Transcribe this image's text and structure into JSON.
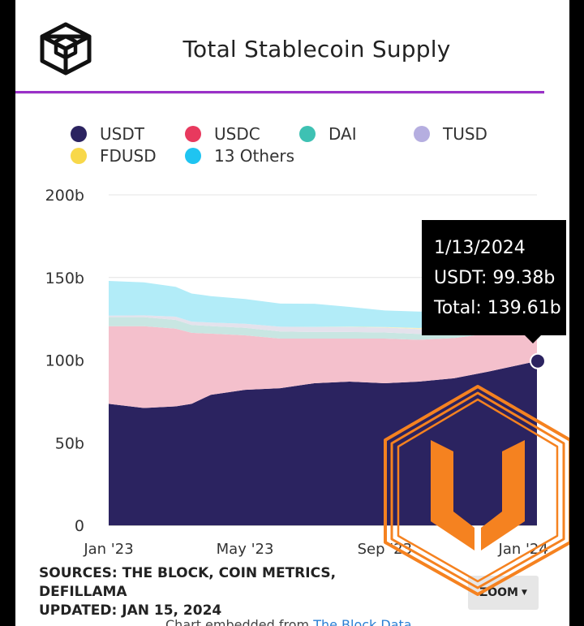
{
  "header": {
    "title": "Total Stablecoin Supply",
    "logo_icon": "the-block-cube-logo-icon"
  },
  "legend": [
    {
      "label": "USDT",
      "color": "#2b2360"
    },
    {
      "label": "USDC",
      "color": "#e8395e"
    },
    {
      "label": "DAI",
      "color": "#3ec1b3"
    },
    {
      "label": "TUSD",
      "color": "#b5aee0"
    },
    {
      "label": "FDUSD",
      "color": "#f8d84a"
    },
    {
      "label": "13 Others",
      "color": "#1fc4f1"
    }
  ],
  "chart_data": {
    "type": "area",
    "stacked": true,
    "title": "Total Stablecoin Supply",
    "xlabel": "",
    "ylabel": "",
    "ylim": [
      0,
      200
    ],
    "y_unit": "b",
    "y_ticks": [
      "0",
      "50b",
      "100b",
      "150b",
      "200b"
    ],
    "x_ticks": [
      "Jan '23",
      "May '23",
      "Sep '23",
      "Jan '24"
    ],
    "grid": true,
    "x": [
      "2023-01-01",
      "2023-02-01",
      "2023-03-01",
      "2023-03-15",
      "2023-04-01",
      "2023-05-01",
      "2023-06-01",
      "2023-07-01",
      "2023-08-01",
      "2023-09-01",
      "2023-10-01",
      "2023-11-01",
      "2023-12-01",
      "2024-01-13"
    ],
    "series": [
      {
        "name": "USDT",
        "color": "#2b2360",
        "values": [
          73.5,
          71,
          72,
          73.5,
          79,
          82,
          83,
          86,
          87,
          86,
          87,
          89,
          93,
          99.38
        ]
      },
      {
        "name": "USDC",
        "color": "#f4c0cc",
        "values": [
          47,
          49.5,
          47,
          43,
          37,
          33,
          30,
          27,
          26,
          27,
          25.3,
          24.3,
          23,
          25
        ]
      },
      {
        "name": "DAI",
        "color": "#c8e6e2",
        "values": [
          5.5,
          5.5,
          5.3,
          4.8,
          4.6,
          4.5,
          4.3,
          4,
          4,
          3.7,
          3.5,
          3.4,
          3.3,
          3.3
        ]
      },
      {
        "name": "TUSD",
        "color": "#e4e2ec",
        "values": [
          0.9,
          1.1,
          2,
          2,
          2.1,
          2.5,
          2.9,
          3,
          3,
          3,
          3,
          2.8,
          2.5,
          1.5
        ]
      },
      {
        "name": "FDUSD",
        "color": "#f7eec0",
        "values": [
          0,
          0,
          0,
          0,
          0,
          0,
          0,
          0.1,
          0.2,
          0.3,
          0.6,
          1,
          1.5,
          1.9
        ]
      },
      {
        "name": "13 Others",
        "color": "#b2ecf8",
        "values": [
          21,
          20,
          18,
          17,
          16,
          15,
          14,
          14,
          12,
          10,
          10,
          9,
          9,
          8.53
        ]
      }
    ],
    "highlight": {
      "date": "1/13/2024",
      "series": "USDT",
      "value": 99.38,
      "total": 139.61
    }
  },
  "tooltip": {
    "date": "1/13/2024",
    "usdt_line": "USDT: 99.38b",
    "total_line": "Total: 139.61b"
  },
  "footer": {
    "sources_line1": "SOURCES: THE BLOCK, COIN METRICS,",
    "sources_line2": "DEFILLAMA",
    "updated": "UPDATED: JAN 15, 2024",
    "zoom_label": "ZOOM",
    "embed_text": "Chart embedded from ",
    "embed_link": "The Block Data"
  },
  "watermark": {
    "icon": "orange-hexagon-u-watermark-icon",
    "color": "#f58220"
  }
}
